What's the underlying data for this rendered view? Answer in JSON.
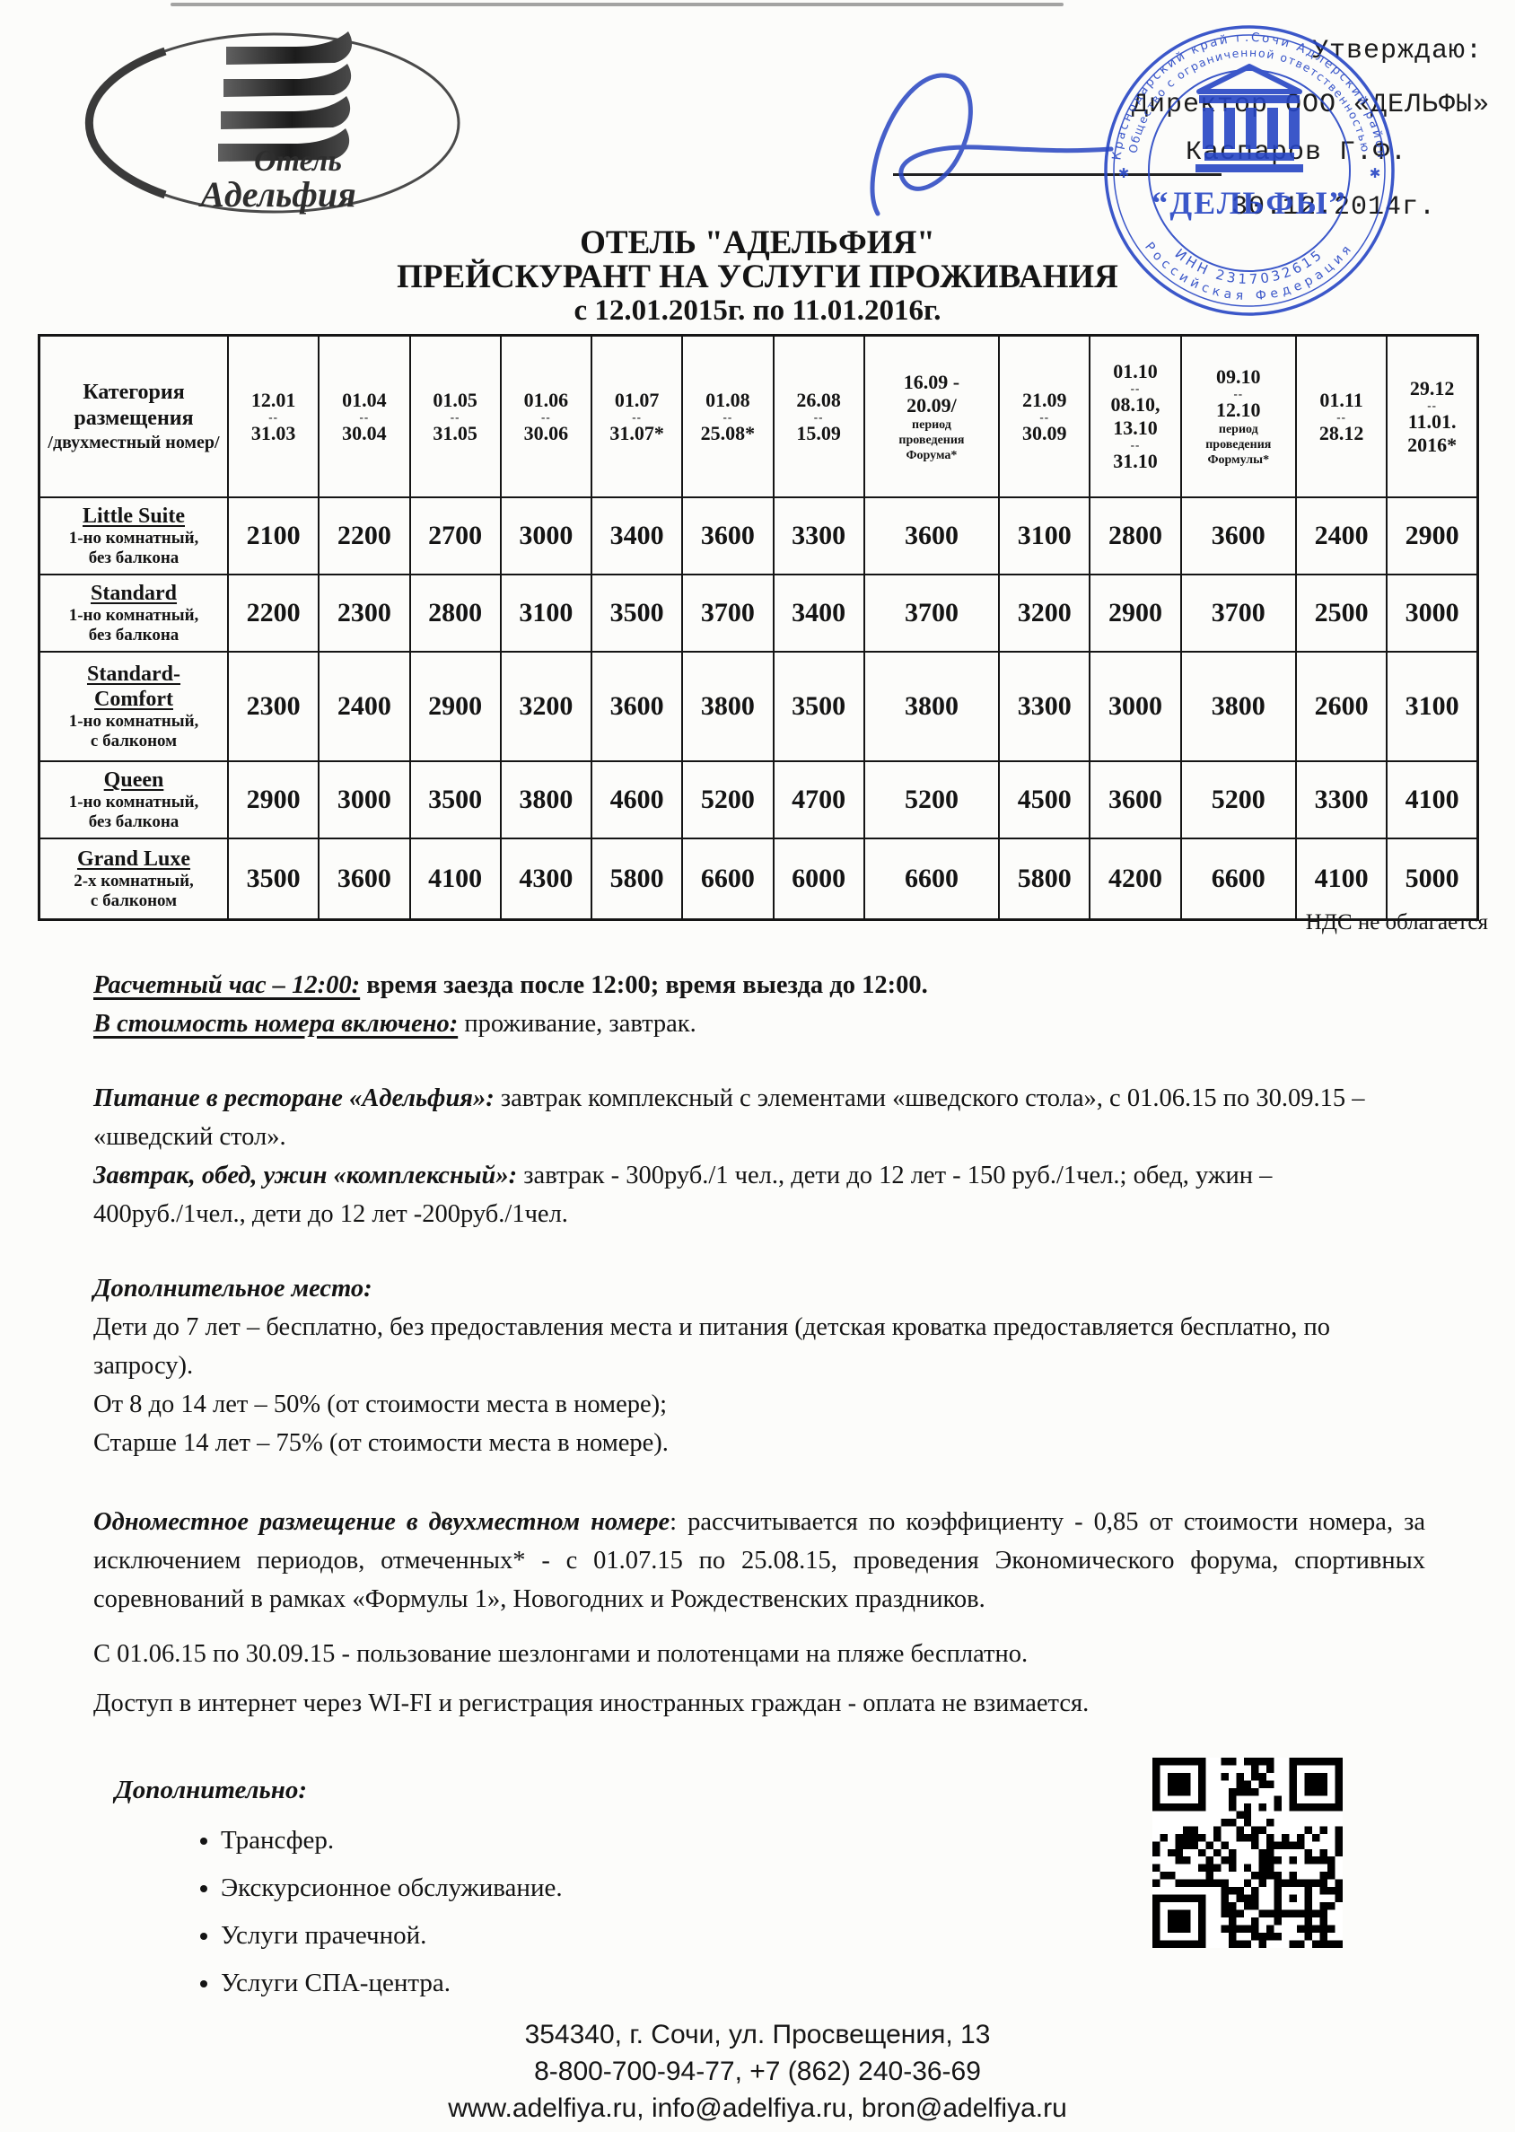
{
  "page": {
    "paper_color": "#fcfcfa",
    "ink_color": "#141414",
    "stamp_color": "#2746c4"
  },
  "logo": {
    "name_line1": "Отель",
    "name_line2": "Адельфия"
  },
  "approval": {
    "approve": "Утверждаю:",
    "position": "Директор ООО «ДЕЛЬФЫ»",
    "signer": "Каспаров Г.Ф.",
    "date": "30.12.2014г."
  },
  "stamp": {
    "ring_outer_top": "Краснодарский край г.Сочи Адлерский район",
    "ring_inner_top": "Общество с ограниченной ответственностью",
    "inn": "ИНН 2317032615",
    "country": "Российская Федерация",
    "center_name": "“ДЕЛЬФЫ”",
    "star_left": "✱",
    "star_right": "✱"
  },
  "title": {
    "line1": "ОТЕЛЬ \"АДЕЛЬФИЯ\"",
    "line2": "ПРЕЙСКУРАНТ НА УСЛУГИ ПРОЖИВАНИЯ",
    "line3": "с 12.01.2015г. по 11.01.2016г."
  },
  "table": {
    "corner": {
      "main": "Категория размещения",
      "sub": "/двухместный номер/"
    },
    "columns": [
      {
        "dates": [
          "12.01",
          "--",
          "31.03"
        ]
      },
      {
        "dates": [
          "01.04",
          "--",
          "30.04"
        ]
      },
      {
        "dates": [
          "01.05",
          "--",
          "31.05"
        ]
      },
      {
        "dates": [
          "01.06",
          "--",
          "30.06"
        ]
      },
      {
        "dates": [
          "01.07",
          "--",
          "31.07*"
        ]
      },
      {
        "dates": [
          "01.08",
          "--",
          "25.08*"
        ]
      },
      {
        "dates": [
          "26.08",
          "--",
          "15.09"
        ]
      },
      {
        "dates": [
          "16.09 -",
          "20.09/"
        ],
        "note": [
          "период",
          "проведения",
          "Форума*"
        ]
      },
      {
        "dates": [
          "21.09",
          "--",
          "30.09"
        ]
      },
      {
        "dates": [
          "01.10",
          "--",
          "08.10,",
          "13.10",
          "--",
          "31.10"
        ]
      },
      {
        "dates": [
          "09.10",
          "--",
          "12.10"
        ],
        "note": [
          "период",
          "проведения",
          "Формулы*"
        ]
      },
      {
        "dates": [
          "01.11",
          "--",
          "28.12"
        ]
      },
      {
        "dates": [
          "29.12",
          "--",
          "11.01.",
          "2016*"
        ]
      }
    ],
    "rows": [
      {
        "name": [
          "Little Suite"
        ],
        "desc": [
          "1-но комнатный,",
          "без балкона"
        ],
        "prices": [
          "2100",
          "2200",
          "2700",
          "3000",
          "3400",
          "3600",
          "3300",
          "3600",
          "3100",
          "2800",
          "3600",
          "2400",
          "2900"
        ]
      },
      {
        "name": [
          "Standard"
        ],
        "desc": [
          "1-но комнатный,",
          "без балкона"
        ],
        "prices": [
          "2200",
          "2300",
          "2800",
          "3100",
          "3500",
          "3700",
          "3400",
          "3700",
          "3200",
          "2900",
          "3700",
          "2500",
          "3000"
        ]
      },
      {
        "name": [
          "Standard-",
          "Comfort"
        ],
        "desc": [
          "1-но комнатный,",
          "с балконом"
        ],
        "prices": [
          "2300",
          "2400",
          "2900",
          "3200",
          "3600",
          "3800",
          "3500",
          "3800",
          "3300",
          "3000",
          "3800",
          "2600",
          "3100"
        ]
      },
      {
        "name": [
          "Queen"
        ],
        "desc": [
          "1-но комнатный,",
          "без балкона"
        ],
        "prices": [
          "2900",
          "3000",
          "3500",
          "3800",
          "4600",
          "5200",
          "4700",
          "5200",
          "4500",
          "3600",
          "5200",
          "3300",
          "4100"
        ]
      },
      {
        "name": [
          "Grand Luxe"
        ],
        "desc": [
          "2-х комнатный,",
          "с балконом"
        ],
        "prices": [
          "3500",
          "3600",
          "4100",
          "4300",
          "5800",
          "6600",
          "6000",
          "6600",
          "5800",
          "4200",
          "6600",
          "4100",
          "5000"
        ]
      }
    ]
  },
  "vat_note": "НДС не облагается",
  "notes": [
    {
      "lead": "Расчетный час – 12:00:",
      "underline": true,
      "bold": true,
      "text": " время заезда после 12:00; время выезда до 12:00."
    },
    {
      "lead": "В стоимость номера включено:",
      "underline": true,
      "text": " проживание, завтрак."
    },
    {
      "lead": "Питание в ресторане «Адельфия»:",
      "text": " завтрак комплексный с элементами «шведского стола», с 01.06.15 по 30.09.15 – «шведский стол»."
    },
    {
      "lead": "Завтрак, обед, ужин «комплексный»:",
      "text": " завтрак - 300руб./1 чел., дети до 12 лет - 150 руб./1чел.; обед, ужин – 400руб./1чел., дети до 12 лет -200руб./1чел."
    },
    {
      "lead": "Дополнительное место:"
    },
    {
      "text": "Дети до 7 лет – бесплатно, без предоставления места и питания (детская кроватка предоставляется бесплатно, по запросу)."
    },
    {
      "text": "От 8 до 14 лет – 50% (от стоимости места в номере);"
    },
    {
      "text": "Старше 14 лет – 75% (от стоимости места в номере)."
    },
    {
      "lead": "Одноместное размещение в двухместном номере",
      "justify": true,
      "text": ": рассчитывается по коэффициенту - 0,85 от стоимости номера, за исключением периодов, отмеченных* -  с 01.07.15 по 25.08.15, проведения Экономического форума, спортивных соревнований в рамках «Формулы 1», Новогодних и Рождественских праздников."
    },
    {
      "text": "С 01.06.15 по 30.09.15 - пользование шезлонгами и полотенцами на пляже бесплатно."
    },
    {
      "text": "Доступ в интернет через WI-FI и регистрация иностранных граждан - оплата не взимается."
    }
  ],
  "extras": {
    "heading": "Дополнительно:",
    "items": [
      "Трансфер.",
      "Экскурсионное обслуживание.",
      "Услуги прачечной.",
      "Услуги СПА-центра."
    ]
  },
  "footer": {
    "address": "354340, г. Сочи, ул. Просвещения, 13",
    "phones": "8-800-700-94-77, +7 (862) 240-36-69",
    "web": "www.adelfiya.ru, info@adelfiya.ru, bron@adelfiya.ru"
  }
}
